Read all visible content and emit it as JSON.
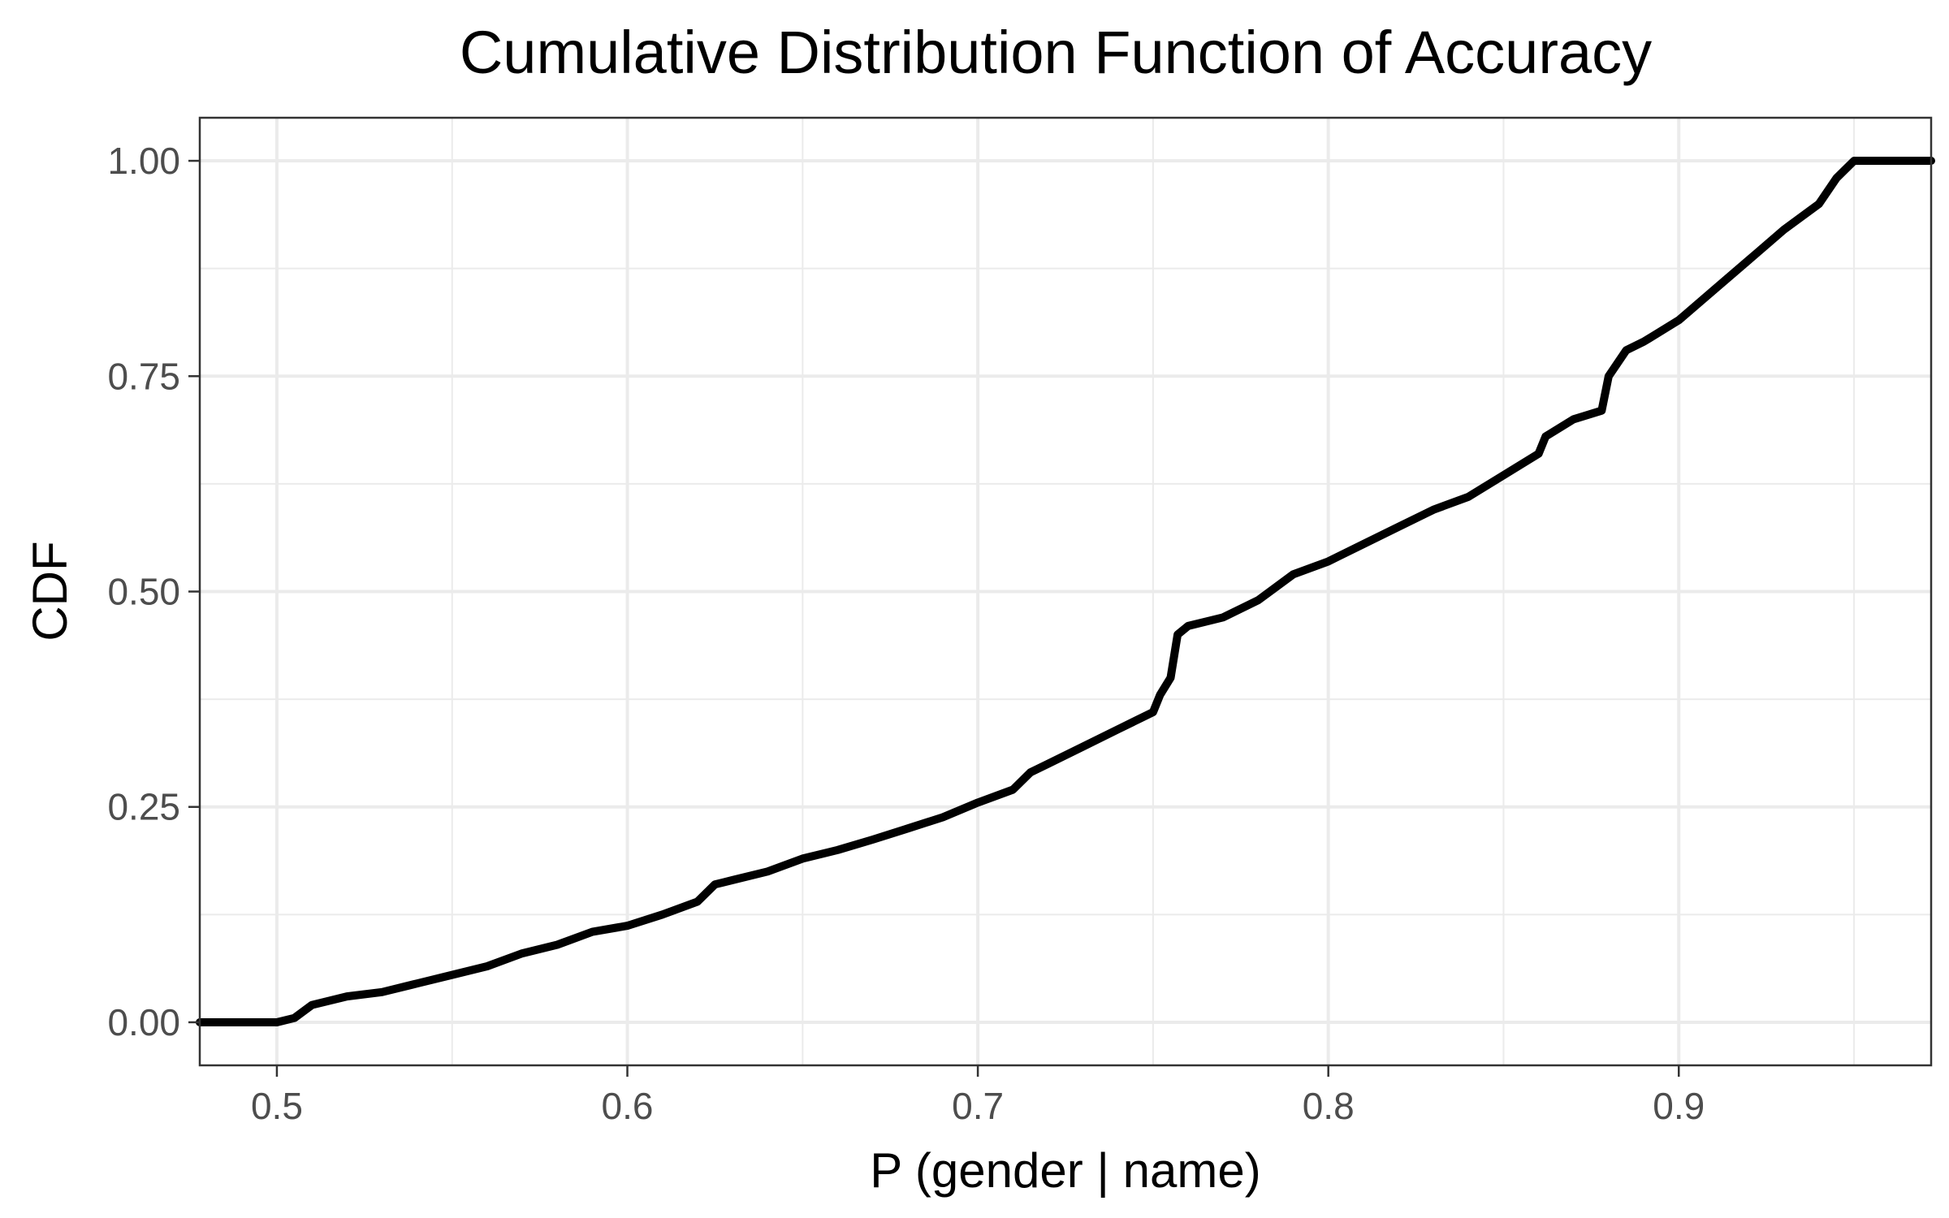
{
  "chart_data": {
    "type": "line",
    "title": "Cumulative Distribution Function of Accuracy",
    "xlabel": "P (gender | name)",
    "ylabel": "CDF",
    "xlim": [
      0.478,
      0.972
    ],
    "ylim": [
      -0.05,
      1.05
    ],
    "x_ticks": [
      0.5,
      0.6,
      0.7,
      0.8,
      0.9
    ],
    "x_tick_labels": [
      "0.5",
      "0.6",
      "0.7",
      "0.8",
      "0.9"
    ],
    "x_minor_ticks": [
      0.55,
      0.65,
      0.75,
      0.85,
      0.95
    ],
    "y_ticks": [
      0,
      0.25,
      0.5,
      0.75,
      1
    ],
    "y_tick_labels": [
      "0.00",
      "0.25",
      "0.50",
      "0.75",
      "1.00"
    ],
    "y_minor_ticks": [
      0.125,
      0.375,
      0.625,
      0.875
    ],
    "grid": true,
    "legend": "none",
    "series": [
      {
        "color": "#000000",
        "x": [
          0.478,
          0.5,
          0.505,
          0.51,
          0.52,
          0.53,
          0.54,
          0.55,
          0.56,
          0.57,
          0.58,
          0.59,
          0.6,
          0.61,
          0.62,
          0.625,
          0.63,
          0.64,
          0.65,
          0.66,
          0.67,
          0.68,
          0.69,
          0.7,
          0.71,
          0.715,
          0.72,
          0.73,
          0.74,
          0.75,
          0.752,
          0.755,
          0.757,
          0.76,
          0.77,
          0.78,
          0.79,
          0.8,
          0.81,
          0.82,
          0.83,
          0.84,
          0.85,
          0.86,
          0.862,
          0.87,
          0.878,
          0.88,
          0.885,
          0.89,
          0.9,
          0.91,
          0.92,
          0.93,
          0.94,
          0.945,
          0.95,
          0.972
        ],
        "y": [
          0.0,
          0.0,
          0.005,
          0.02,
          0.03,
          0.035,
          0.045,
          0.055,
          0.065,
          0.08,
          0.09,
          0.105,
          0.112,
          0.125,
          0.14,
          0.16,
          0.165,
          0.175,
          0.19,
          0.2,
          0.212,
          0.225,
          0.238,
          0.255,
          0.27,
          0.29,
          0.3,
          0.32,
          0.34,
          0.36,
          0.38,
          0.4,
          0.45,
          0.46,
          0.47,
          0.49,
          0.52,
          0.535,
          0.555,
          0.575,
          0.595,
          0.61,
          0.635,
          0.66,
          0.68,
          0.7,
          0.71,
          0.75,
          0.78,
          0.79,
          0.815,
          0.85,
          0.885,
          0.92,
          0.95,
          0.98,
          1.0,
          1.0
        ]
      }
    ]
  }
}
